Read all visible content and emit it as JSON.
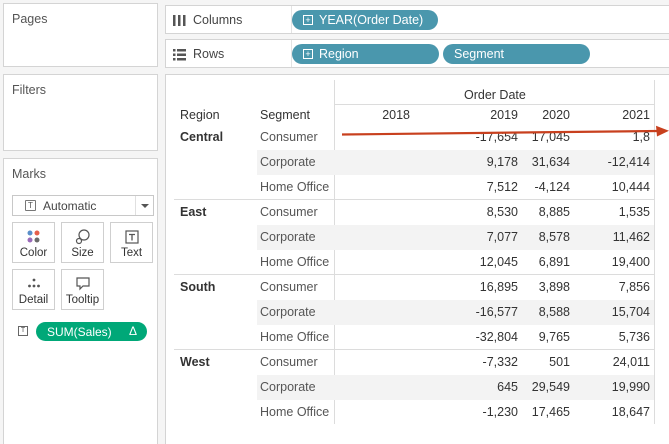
{
  "pages": {
    "title": "Pages"
  },
  "filters": {
    "title": "Filters"
  },
  "marks": {
    "title": "Marks",
    "mark_type": "Automatic",
    "buttons": {
      "color": "Color",
      "size": "Size",
      "text": "Text",
      "detail": "Detail",
      "tooltip": "Tooltip"
    },
    "measure_pill": {
      "label": "SUM(Sales)",
      "delta": "Δ"
    }
  },
  "shelves": {
    "columns": {
      "label": "Columns",
      "pill": "YEAR(Order Date)"
    },
    "rows": {
      "label": "Rows",
      "pills": [
        "Region",
        "Segment"
      ]
    }
  },
  "table": {
    "column_group_header": "Order Date",
    "region_header": "Region",
    "segment_header": "Segment",
    "years": [
      "2018",
      "2019",
      "2020",
      "2021"
    ],
    "regions": [
      {
        "name": "Central",
        "rows": [
          {
            "segment": "Consumer",
            "values": [
              "",
              "-17,654",
              "17,045",
              "1,8"
            ]
          },
          {
            "segment": "Corporate",
            "values": [
              "",
              "9,178",
              "31,634",
              "-12,414"
            ]
          },
          {
            "segment": "Home Office",
            "values": [
              "",
              "7,512",
              "-4,124",
              "10,444"
            ]
          }
        ]
      },
      {
        "name": "East",
        "rows": [
          {
            "segment": "Consumer",
            "values": [
              "",
              "8,530",
              "8,885",
              "1,535"
            ]
          },
          {
            "segment": "Corporate",
            "values": [
              "",
              "7,077",
              "8,578",
              "11,462"
            ]
          },
          {
            "segment": "Home Office",
            "values": [
              "",
              "12,045",
              "6,891",
              "19,400"
            ]
          }
        ]
      },
      {
        "name": "South",
        "rows": [
          {
            "segment": "Consumer",
            "values": [
              "",
              "16,895",
              "3,898",
              "7,856"
            ]
          },
          {
            "segment": "Corporate",
            "values": [
              "",
              "-16,577",
              "8,588",
              "15,704"
            ]
          },
          {
            "segment": "Home Office",
            "values": [
              "",
              "-32,804",
              "9,765",
              "5,736"
            ]
          }
        ]
      },
      {
        "name": "West",
        "rows": [
          {
            "segment": "Consumer",
            "values": [
              "",
              "-7,332",
              "501",
              "24,011"
            ]
          },
          {
            "segment": "Corporate",
            "values": [
              "",
              "645",
              "29,549",
              "19,990"
            ]
          },
          {
            "segment": "Home Office",
            "values": [
              "",
              "-1,230",
              "17,465",
              "18,647"
            ]
          }
        ]
      }
    ]
  },
  "colors": {
    "dimension_pill": "#4a97ad",
    "measure_pill": "#00a878",
    "annotation_arrow": "#c8401e"
  }
}
